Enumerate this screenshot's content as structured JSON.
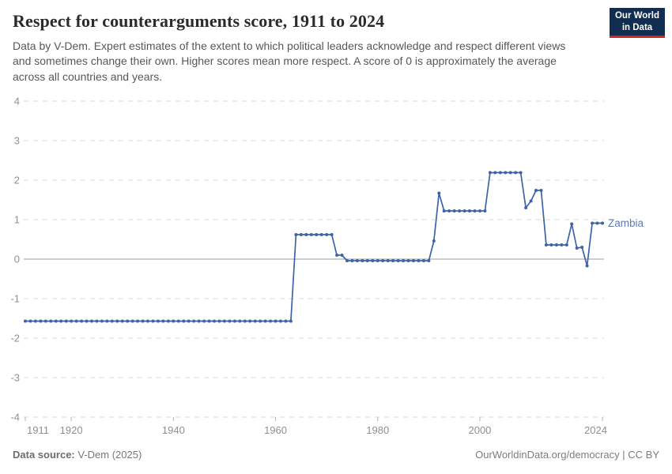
{
  "header": {
    "title": "Respect for counterarguments score, 1911 to 2024",
    "subtitle": "Data by V-Dem. Expert estimates of the extent to which political leaders acknowledge and respect different views and sometimes change their own. Higher scores mean more respect. A score of 0 is approximately the average across all countries and years."
  },
  "logo": {
    "line1": "Our World",
    "line2": "in Data",
    "bg_color": "#112e51",
    "accent_color": "#d2271d"
  },
  "chart_data": {
    "type": "line",
    "title": "Respect for counterarguments score, 1911 to 2024",
    "xlabel": "",
    "ylabel": "",
    "xlim": [
      1911,
      2024
    ],
    "ylim": [
      -4,
      4
    ],
    "x_ticks": [
      1911,
      1920,
      1940,
      1960,
      1980,
      2000,
      2024
    ],
    "y_ticks": [
      4,
      3,
      2,
      1,
      0,
      -1,
      -2,
      -3,
      -4
    ],
    "grid": "horizontal dashed gridlines, solid line at 0",
    "legend_position": "label at end of line",
    "colors": {
      "line": "#3d64a8",
      "entity_label": "#5b7ab1",
      "gridline": "#d9d9d9",
      "zero_line": "#9c9c9c",
      "tick_text": "#8f8f8f",
      "axis_tick": "#b5b5b5"
    },
    "year_start": 1911,
    "series": [
      {
        "name": "Zambia",
        "values": [
          -1.57,
          -1.57,
          -1.57,
          -1.57,
          -1.57,
          -1.57,
          -1.57,
          -1.57,
          -1.57,
          -1.57,
          -1.57,
          -1.57,
          -1.57,
          -1.57,
          -1.57,
          -1.57,
          -1.57,
          -1.57,
          -1.57,
          -1.57,
          -1.57,
          -1.57,
          -1.57,
          -1.57,
          -1.57,
          -1.57,
          -1.57,
          -1.57,
          -1.57,
          -1.57,
          -1.57,
          -1.57,
          -1.57,
          -1.57,
          -1.57,
          -1.57,
          -1.57,
          -1.57,
          -1.57,
          -1.57,
          -1.57,
          -1.57,
          -1.57,
          -1.57,
          -1.57,
          -1.57,
          -1.57,
          -1.57,
          -1.57,
          -1.57,
          -1.57,
          -1.57,
          -1.57,
          0.62,
          0.62,
          0.62,
          0.62,
          0.62,
          0.62,
          0.62,
          0.62,
          0.1,
          0.1,
          -0.04,
          -0.04,
          -0.04,
          -0.04,
          -0.04,
          -0.04,
          -0.04,
          -0.04,
          -0.04,
          -0.04,
          -0.04,
          -0.04,
          -0.04,
          -0.04,
          -0.04,
          -0.04,
          -0.04,
          0.46,
          1.67,
          1.22,
          1.22,
          1.22,
          1.22,
          1.22,
          1.22,
          1.22,
          1.22,
          1.22,
          2.19,
          2.19,
          2.19,
          2.19,
          2.19,
          2.19,
          2.19,
          1.3,
          1.47,
          1.74,
          1.74,
          0.36,
          0.36,
          0.36,
          0.36,
          0.36,
          0.89,
          0.28,
          0.3,
          -0.17,
          0.91,
          0.91,
          0.91
        ]
      }
    ]
  },
  "footer": {
    "source_label": "Data source:",
    "source_value": " V-Dem (2025)",
    "credit": "OurWorldinData.org/democracy | CC BY"
  }
}
